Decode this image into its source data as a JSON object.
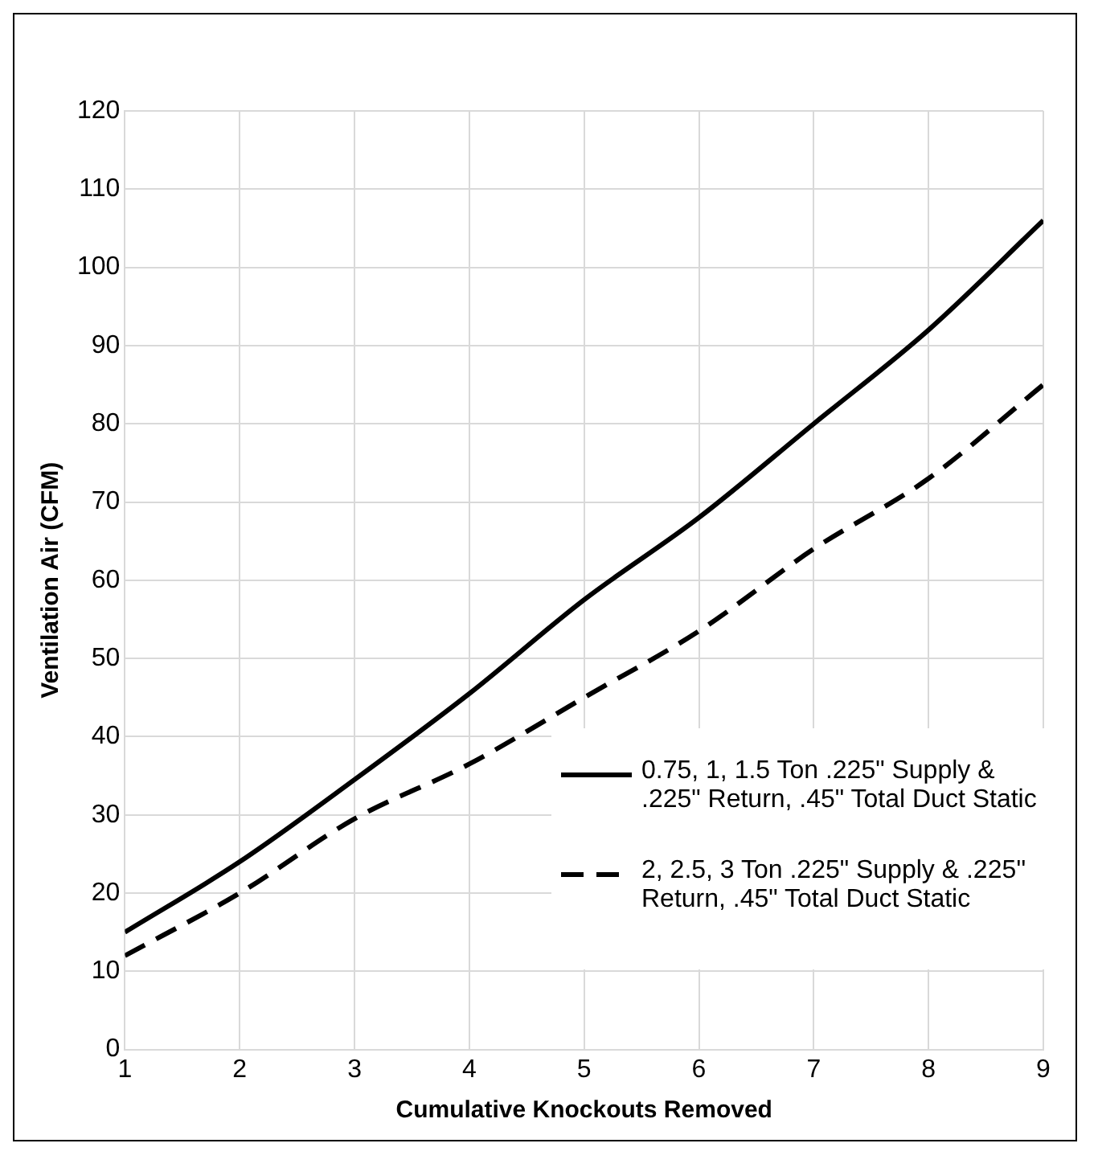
{
  "chart_data": {
    "type": "line",
    "xlabel": "Cumulative Knockouts Removed",
    "ylabel": "Ventilation Air (CFM)",
    "x": [
      1,
      2,
      3,
      4,
      5,
      6,
      7,
      8,
      9
    ],
    "series": [
      {
        "name": "0.75, 1, 1.5 Ton .225\" Supply & .225\" Return, .45\" Total Duct Static",
        "color": "#000000",
        "line_style": "solid",
        "values": [
          15,
          24,
          34.5,
          45.5,
          57.5,
          68,
          80,
          92,
          106
        ]
      },
      {
        "name": "2, 2.5, 3 Ton .225\" Supply & .225'' Return, .45\" Total Duct Static",
        "color": "#000000",
        "line_style": "dashed",
        "values": [
          12,
          20,
          29.5,
          36.5,
          45,
          53.5,
          64,
          73,
          85
        ]
      }
    ],
    "xlim": [
      1,
      9
    ],
    "xticks": [
      1,
      2,
      3,
      4,
      5,
      6,
      7,
      8,
      9
    ],
    "ylim": [
      0,
      120
    ],
    "yticks": [
      0,
      10,
      20,
      30,
      40,
      50,
      60,
      70,
      80,
      90,
      100,
      110,
      120
    ],
    "grid": true,
    "legend": "bottom right",
    "marker": "none"
  }
}
